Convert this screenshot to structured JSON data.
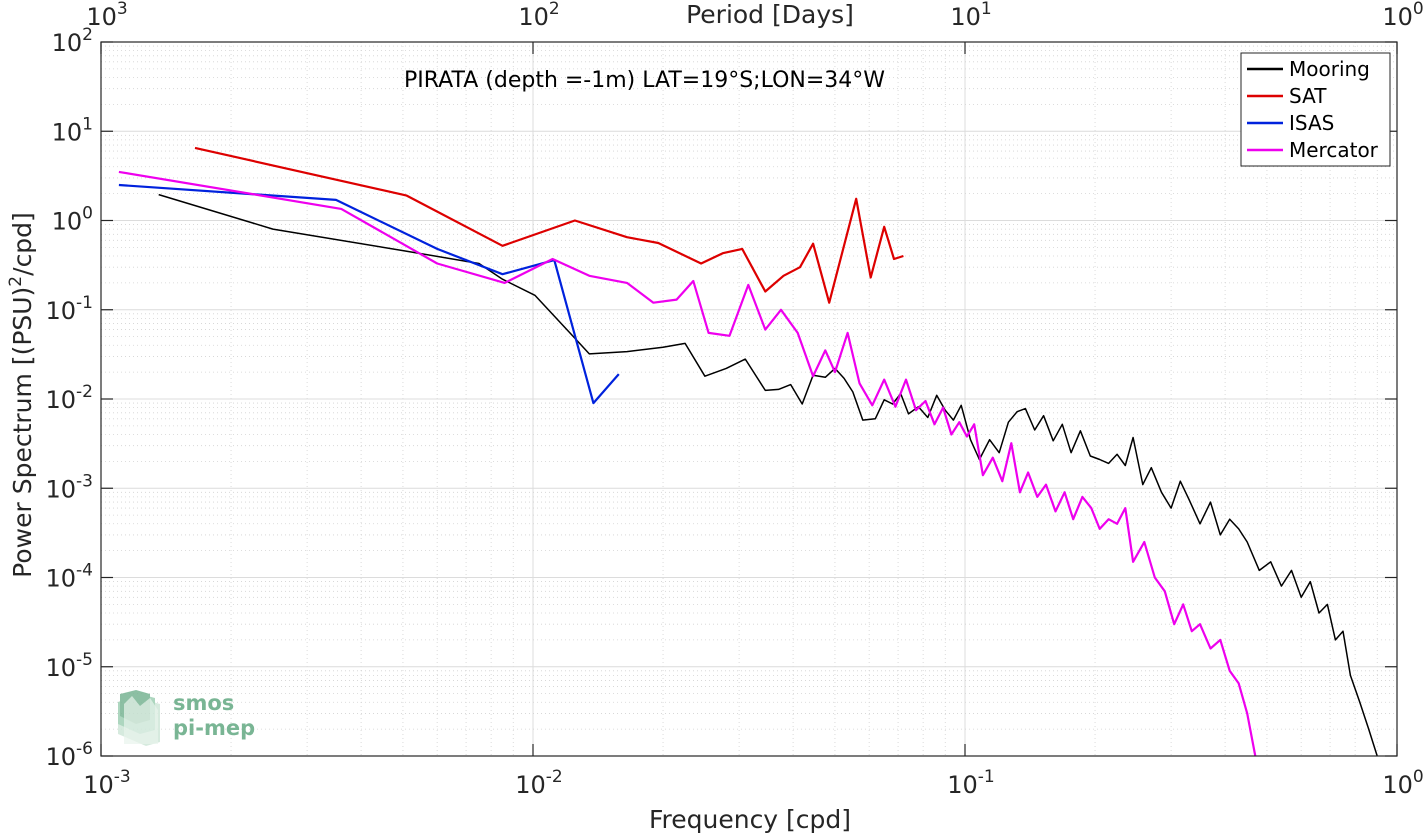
{
  "chart_data": {
    "type": "line",
    "title": "",
    "annotation": "PIRATA (depth =-1m) LAT=19°S;LON=34°W",
    "xlabel": "Frequency [cpd]",
    "ylabel_prefix": "Power Spectrum [(PSU)",
    "ylabel_sup": "2",
    "ylabel_suffix": "/cpd]",
    "top_xlabel": "Period [Days]",
    "x_scale": "log",
    "y_scale": "log",
    "xlim": [
      0.001,
      1
    ],
    "ylim": [
      1e-06,
      100
    ],
    "grid": true,
    "legend_position": "top-right",
    "x_ticks": [
      {
        "value": 0.001,
        "base": "10",
        "exp": "-3"
      },
      {
        "value": 0.01,
        "base": "10",
        "exp": "-2"
      },
      {
        "value": 0.1,
        "base": "10",
        "exp": "-1"
      },
      {
        "value": 1,
        "base": "10",
        "exp": "0"
      }
    ],
    "y_ticks": [
      {
        "value": 1e-06,
        "base": "10",
        "exp": "-6"
      },
      {
        "value": 1e-05,
        "base": "10",
        "exp": "-5"
      },
      {
        "value": 0.0001,
        "base": "10",
        "exp": "-4"
      },
      {
        "value": 0.001,
        "base": "10",
        "exp": "-3"
      },
      {
        "value": 0.01,
        "base": "10",
        "exp": "-2"
      },
      {
        "value": 0.1,
        "base": "10",
        "exp": "-1"
      },
      {
        "value": 1,
        "base": "10",
        "exp": "0"
      },
      {
        "value": 10,
        "base": "10",
        "exp": "1"
      },
      {
        "value": 100,
        "base": "10",
        "exp": "2"
      }
    ],
    "top_ticks": [
      {
        "value": 0.001,
        "base": "10",
        "exp": "3"
      },
      {
        "value": 0.01,
        "base": "10",
        "exp": "2"
      },
      {
        "value": 0.1,
        "base": "10",
        "exp": "1"
      },
      {
        "value": 1,
        "base": "10",
        "exp": "0"
      }
    ],
    "series": [
      {
        "name": "Mooring",
        "color": "#000000",
        "points": [
          [
            0.00136,
            1.95
          ],
          [
            0.0025,
            0.8
          ],
          [
            0.005,
            0.46
          ],
          [
            0.0075,
            0.33
          ],
          [
            0.0085,
            0.22
          ],
          [
            0.0101,
            0.145
          ],
          [
            0.0125,
            0.048
          ],
          [
            0.0135,
            0.032
          ],
          [
            0.0165,
            0.034
          ],
          [
            0.02,
            0.038
          ],
          [
            0.0225,
            0.042
          ],
          [
            0.025,
            0.018
          ],
          [
            0.028,
            0.022
          ],
          [
            0.031,
            0.028
          ],
          [
            0.0345,
            0.0125
          ],
          [
            0.037,
            0.0128
          ],
          [
            0.0395,
            0.0145
          ],
          [
            0.042,
            0.0088
          ],
          [
            0.0445,
            0.0185
          ],
          [
            0.0475,
            0.0175
          ],
          [
            0.05,
            0.022
          ],
          [
            0.0525,
            0.017
          ],
          [
            0.055,
            0.012
          ],
          [
            0.058,
            0.0058
          ],
          [
            0.062,
            0.006
          ],
          [
            0.065,
            0.0098
          ],
          [
            0.068,
            0.0088
          ],
          [
            0.071,
            0.0115
          ],
          [
            0.074,
            0.0068
          ],
          [
            0.078,
            0.0082
          ],
          [
            0.082,
            0.0062
          ],
          [
            0.086,
            0.011
          ],
          [
            0.09,
            0.0075
          ],
          [
            0.094,
            0.0058
          ],
          [
            0.098,
            0.0085
          ],
          [
            0.103,
            0.0035
          ],
          [
            0.108,
            0.0021
          ],
          [
            0.114,
            0.0035
          ],
          [
            0.12,
            0.0025
          ],
          [
            0.126,
            0.0055
          ],
          [
            0.132,
            0.0072
          ],
          [
            0.138,
            0.0078
          ],
          [
            0.145,
            0.0045
          ],
          [
            0.152,
            0.0065
          ],
          [
            0.16,
            0.0034
          ],
          [
            0.168,
            0.0052
          ],
          [
            0.176,
            0.0025
          ],
          [
            0.185,
            0.0044
          ],
          [
            0.195,
            0.0023
          ],
          [
            0.205,
            0.0021
          ],
          [
            0.215,
            0.0019
          ],
          [
            0.225,
            0.0024
          ],
          [
            0.235,
            0.0018
          ],
          [
            0.245,
            0.0037
          ],
          [
            0.258,
            0.0011
          ],
          [
            0.27,
            0.0017
          ],
          [
            0.285,
            0.0009
          ],
          [
            0.3,
            0.0006
          ],
          [
            0.315,
            0.0012
          ],
          [
            0.33,
            0.00075
          ],
          [
            0.35,
            0.0004
          ],
          [
            0.37,
            0.0007
          ],
          [
            0.39,
            0.0003
          ],
          [
            0.41,
            0.00045
          ],
          [
            0.43,
            0.00035
          ],
          [
            0.45,
            0.00025
          ],
          [
            0.48,
            0.00012
          ],
          [
            0.51,
            0.00015
          ],
          [
            0.54,
            8e-05
          ],
          [
            0.57,
            0.00012
          ],
          [
            0.6,
            6e-05
          ],
          [
            0.63,
            9e-05
          ],
          [
            0.66,
            4e-05
          ],
          [
            0.69,
            5e-05
          ],
          [
            0.72,
            2e-05
          ],
          [
            0.75,
            2.5e-05
          ],
          [
            0.78,
            8e-06
          ],
          [
            0.82,
            4e-06
          ],
          [
            0.86,
            2e-06
          ],
          [
            0.9,
            1e-06
          ]
        ]
      },
      {
        "name": "SAT",
        "color": "#dd0000",
        "points": [
          [
            0.00165,
            6.5
          ],
          [
            0.0051,
            1.9
          ],
          [
            0.0085,
            0.52
          ],
          [
            0.0125,
            1.0
          ],
          [
            0.0165,
            0.65
          ],
          [
            0.0195,
            0.56
          ],
          [
            0.0245,
            0.33
          ],
          [
            0.0275,
            0.43
          ],
          [
            0.0305,
            0.48
          ],
          [
            0.0345,
            0.16
          ],
          [
            0.038,
            0.24
          ],
          [
            0.0415,
            0.3
          ],
          [
            0.0445,
            0.55
          ],
          [
            0.0485,
            0.12
          ],
          [
            0.056,
            1.75
          ],
          [
            0.0605,
            0.23
          ],
          [
            0.065,
            0.85
          ],
          [
            0.0685,
            0.37
          ],
          [
            0.072,
            0.4
          ]
        ]
      },
      {
        "name": "ISAS",
        "color": "#0022dd",
        "points": [
          [
            0.0011,
            2.5
          ],
          [
            0.0035,
            1.7
          ],
          [
            0.006,
            0.48
          ],
          [
            0.0085,
            0.25
          ],
          [
            0.0112,
            0.36
          ],
          [
            0.0138,
            0.009
          ],
          [
            0.0158,
            0.019
          ]
        ]
      },
      {
        "name": "Mercator",
        "color": "#ee00ee",
        "points": [
          [
            0.0011,
            3.5
          ],
          [
            0.0036,
            1.35
          ],
          [
            0.006,
            0.33
          ],
          [
            0.0086,
            0.2
          ],
          [
            0.0111,
            0.37
          ],
          [
            0.0135,
            0.24
          ],
          [
            0.0165,
            0.2
          ],
          [
            0.019,
            0.12
          ],
          [
            0.0215,
            0.13
          ],
          [
            0.0235,
            0.21
          ],
          [
            0.0255,
            0.055
          ],
          [
            0.0285,
            0.051
          ],
          [
            0.0315,
            0.19
          ],
          [
            0.0345,
            0.06
          ],
          [
            0.0375,
            0.1
          ],
          [
            0.041,
            0.055
          ],
          [
            0.0445,
            0.018
          ],
          [
            0.0475,
            0.035
          ],
          [
            0.05,
            0.02
          ],
          [
            0.0535,
            0.055
          ],
          [
            0.057,
            0.015
          ],
          [
            0.061,
            0.0085
          ],
          [
            0.065,
            0.0165
          ],
          [
            0.069,
            0.0082
          ],
          [
            0.073,
            0.0165
          ],
          [
            0.077,
            0.0075
          ],
          [
            0.081,
            0.0095
          ],
          [
            0.085,
            0.0052
          ],
          [
            0.089,
            0.008
          ],
          [
            0.093,
            0.004
          ],
          [
            0.097,
            0.0055
          ],
          [
            0.101,
            0.0038
          ],
          [
            0.105,
            0.0052
          ],
          [
            0.11,
            0.0014
          ],
          [
            0.116,
            0.0022
          ],
          [
            0.122,
            0.0012
          ],
          [
            0.128,
            0.0032
          ],
          [
            0.134,
            0.0009
          ],
          [
            0.14,
            0.0015
          ],
          [
            0.147,
            0.0008
          ],
          [
            0.154,
            0.0011
          ],
          [
            0.162,
            0.00055
          ],
          [
            0.17,
            0.0009
          ],
          [
            0.178,
            0.00045
          ],
          [
            0.187,
            0.0008
          ],
          [
            0.196,
            0.0006
          ],
          [
            0.205,
            0.00035
          ],
          [
            0.215,
            0.00045
          ],
          [
            0.225,
            0.0004
          ],
          [
            0.235,
            0.0006
          ],
          [
            0.245,
            0.00015
          ],
          [
            0.26,
            0.00025
          ],
          [
            0.275,
            0.0001
          ],
          [
            0.29,
            7e-05
          ],
          [
            0.305,
            3e-05
          ],
          [
            0.32,
            5e-05
          ],
          [
            0.335,
            2.5e-05
          ],
          [
            0.35,
            3e-05
          ],
          [
            0.37,
            1.6e-05
          ],
          [
            0.39,
            2e-05
          ],
          [
            0.41,
            9e-06
          ],
          [
            0.43,
            6.5e-06
          ],
          [
            0.45,
            3e-06
          ],
          [
            0.47,
            1e-06
          ]
        ]
      }
    ]
  },
  "logo": {
    "line1": "smos",
    "line2": "pi-mep",
    "color": "#79b594"
  }
}
